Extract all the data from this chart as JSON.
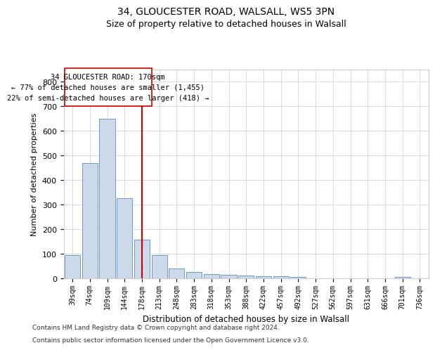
{
  "title_line1": "34, GLOUCESTER ROAD, WALSALL, WS5 3PN",
  "title_line2": "Size of property relative to detached houses in Walsall",
  "xlabel": "Distribution of detached houses by size in Walsall",
  "ylabel": "Number of detached properties",
  "footer_line1": "Contains HM Land Registry data © Crown copyright and database right 2024.",
  "footer_line2": "Contains public sector information licensed under the Open Government Licence v3.0.",
  "annotation_line1": "34 GLOUCESTER ROAD: 170sqm",
  "annotation_line2": "← 77% of detached houses are smaller (1,455)",
  "annotation_line3": "22% of semi-detached houses are larger (418) →",
  "bar_labels": [
    "39sqm",
    "74sqm",
    "109sqm",
    "144sqm",
    "178sqm",
    "213sqm",
    "248sqm",
    "283sqm",
    "318sqm",
    "353sqm",
    "388sqm",
    "422sqm",
    "457sqm",
    "492sqm",
    "527sqm",
    "562sqm",
    "597sqm",
    "631sqm",
    "666sqm",
    "701sqm",
    "736sqm"
  ],
  "bar_values": [
    95,
    470,
    648,
    325,
    157,
    93,
    40,
    25,
    17,
    13,
    12,
    10,
    8,
    5,
    1,
    1,
    1,
    0,
    0,
    5,
    0
  ],
  "bar_color": "#ccd9e8",
  "bar_edge_color": "#5b8cc8",
  "redline_index": 4,
  "redline_color": "#cc0000",
  "ylim": [
    0,
    850
  ],
  "yticks": [
    0,
    100,
    200,
    300,
    400,
    500,
    600,
    700,
    800
  ],
  "background_color": "#ffffff",
  "grid_color": "#cccccc",
  "title_fontsize": 10,
  "subtitle_fontsize": 9,
  "annotation_box_color": "#ffffff",
  "annotation_box_edge": "#cc0000",
  "footer_fontsize": 6.5,
  "ylabel_fontsize": 8,
  "xlabel_fontsize": 8.5
}
